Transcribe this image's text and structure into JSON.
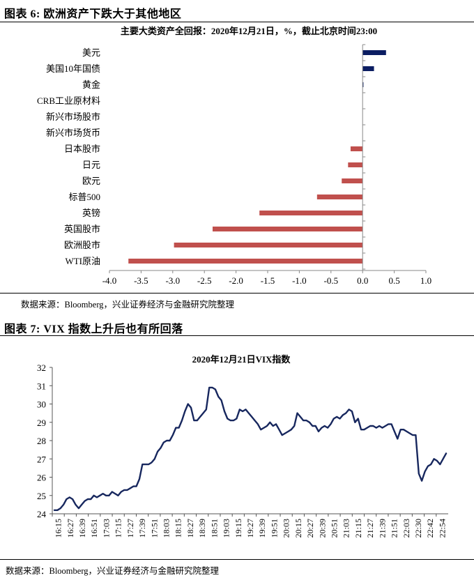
{
  "figure1": {
    "title": "图表 6:  欧洲资产下跌大于其他地区",
    "source": "数据来源：Bloomberg，兴业证券经济与金融研究院整理"
  },
  "figure2": {
    "title": "图表 7:  VIX 指数上升后也有所回落",
    "source": "数据来源：Bloomberg，兴业证券经济与金融研究院整理"
  },
  "colors": {
    "positive_bar": "#0b1d62",
    "negative_bar": "#c0504d",
    "line": "#17275e"
  },
  "chart_data": [
    {
      "type": "bar",
      "orientation": "horizontal",
      "title": "主要大类资产全回报：2020年12月21日，%，截止北京时间23:00",
      "categories": [
        "美元",
        "美国10年国债",
        "黄金",
        "CRB工业原材料",
        "新兴市场股市",
        "新兴市场货币",
        "日本股市",
        "日元",
        "欧元",
        "标普500",
        "英镑",
        "英国股市",
        "欧洲股市",
        "WTI原油"
      ],
      "values": [
        0.37,
        0.18,
        0.01,
        0.0,
        0.0,
        0.0,
        -0.19,
        -0.23,
        -0.33,
        -0.72,
        -1.63,
        -2.37,
        -2.98,
        -3.7
      ],
      "xlim": [
        -4.0,
        1.0
      ],
      "xticks": [
        "-4.0",
        "-3.5",
        "-3.0",
        "-2.5",
        "-2.0",
        "-1.5",
        "-1.0",
        "-0.5",
        "0.0",
        "0.5",
        "1.0"
      ],
      "grid": false
    },
    {
      "type": "line",
      "title": "2020年12月21日VIX指数",
      "ylim": [
        24,
        32
      ],
      "yticks": [
        "24",
        "25",
        "26",
        "27",
        "28",
        "29",
        "30",
        "31",
        "32"
      ],
      "xtick_labels": [
        "16:15",
        "16:27",
        "16:39",
        "16:51",
        "17:03",
        "17:15",
        "17:27",
        "17:39",
        "17:51",
        "18:03",
        "18:15",
        "18:27",
        "18:39",
        "18:51",
        "19:03",
        "19:15",
        "19:27",
        "19:39",
        "19:51",
        "20:03",
        "20:15",
        "20:27",
        "20:39",
        "20:51",
        "21:03",
        "21:15",
        "21:27",
        "21:39",
        "21:51",
        "22:03",
        "22:30",
        "22:42",
        "22:54"
      ],
      "series": [
        {
          "values": [
            24.2,
            24.2,
            24.3,
            24.5,
            24.8,
            24.9,
            24.8,
            24.5,
            24.3,
            24.5,
            24.7,
            24.8,
            24.8,
            25.0,
            24.9,
            25.0,
            25.1,
            25.0,
            25.0,
            25.2,
            25.1,
            25.0,
            25.2,
            25.3,
            25.3,
            25.4,
            25.5,
            25.5,
            25.9,
            26.7,
            26.7,
            26.7,
            26.8,
            27.0,
            27.4,
            27.6,
            27.9,
            28.0,
            28.0,
            28.3,
            28.7,
            28.7,
            29.1,
            29.6,
            30.0,
            29.8,
            29.1,
            29.1,
            29.3,
            29.5,
            29.7,
            30.9,
            30.9,
            30.8,
            30.4,
            30.2,
            29.6,
            29.2,
            29.1,
            29.1,
            29.2,
            29.7,
            29.6,
            29.7,
            29.5,
            29.3,
            29.1,
            28.9,
            28.6,
            28.7,
            28.8,
            29.0,
            28.8,
            28.9,
            28.6,
            28.3,
            28.4,
            28.5,
            28.6,
            28.8,
            29.5,
            29.3,
            29.1,
            29.1,
            29.0,
            28.8,
            28.8,
            28.5,
            28.7,
            28.8,
            28.7,
            28.9,
            29.2,
            29.3,
            29.2,
            29.4,
            29.5,
            29.7,
            29.6,
            29.0,
            29.2,
            28.6,
            28.6,
            28.7,
            28.8,
            28.8,
            28.7,
            28.8,
            28.7,
            28.8,
            28.9,
            28.9,
            28.5,
            28.1,
            28.6,
            28.6,
            28.5,
            28.4,
            28.3,
            28.3,
            26.2,
            25.8,
            26.3,
            26.6,
            26.7,
            27.0,
            26.9,
            26.7,
            27.0,
            27.3
          ]
        }
      ],
      "grid": false
    }
  ]
}
